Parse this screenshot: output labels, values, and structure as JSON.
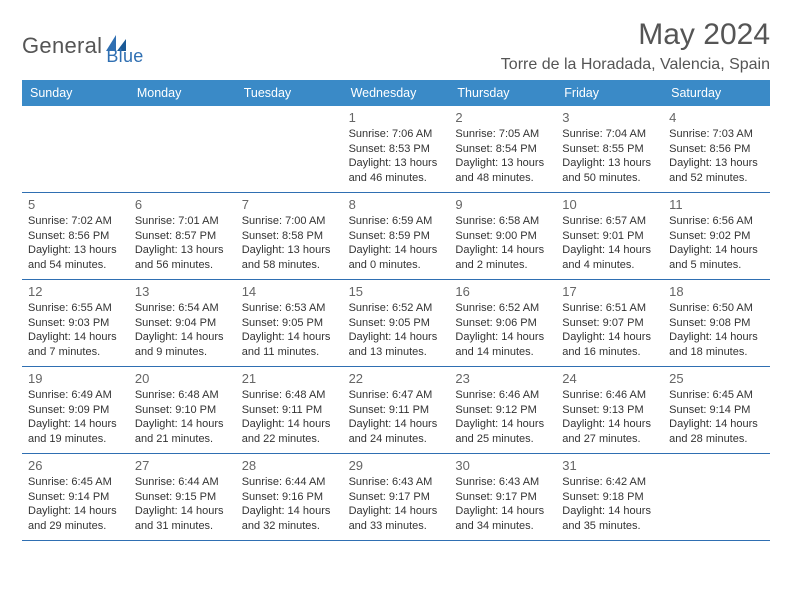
{
  "logo": {
    "text_left": "General",
    "text_right": "Blue"
  },
  "title": "May 2024",
  "location": "Torre de la Horadada, Valencia, Spain",
  "colors": {
    "header_bg": "#3a8ac7",
    "header_text": "#ffffff",
    "rule": "#2f6fb2",
    "text": "#333333",
    "muted": "#666666",
    "title": "#555555"
  },
  "dow": [
    "Sunday",
    "Monday",
    "Tuesday",
    "Wednesday",
    "Thursday",
    "Friday",
    "Saturday"
  ],
  "weeks": [
    [
      null,
      null,
      null,
      {
        "n": "1",
        "sr": "7:06 AM",
        "ss": "8:53 PM",
        "dh": 13,
        "dm": 46
      },
      {
        "n": "2",
        "sr": "7:05 AM",
        "ss": "8:54 PM",
        "dh": 13,
        "dm": 48
      },
      {
        "n": "3",
        "sr": "7:04 AM",
        "ss": "8:55 PM",
        "dh": 13,
        "dm": 50
      },
      {
        "n": "4",
        "sr": "7:03 AM",
        "ss": "8:56 PM",
        "dh": 13,
        "dm": 52
      }
    ],
    [
      {
        "n": "5",
        "sr": "7:02 AM",
        "ss": "8:56 PM",
        "dh": 13,
        "dm": 54
      },
      {
        "n": "6",
        "sr": "7:01 AM",
        "ss": "8:57 PM",
        "dh": 13,
        "dm": 56
      },
      {
        "n": "7",
        "sr": "7:00 AM",
        "ss": "8:58 PM",
        "dh": 13,
        "dm": 58
      },
      {
        "n": "8",
        "sr": "6:59 AM",
        "ss": "8:59 PM",
        "dh": 14,
        "dm": 0
      },
      {
        "n": "9",
        "sr": "6:58 AM",
        "ss": "9:00 PM",
        "dh": 14,
        "dm": 2
      },
      {
        "n": "10",
        "sr": "6:57 AM",
        "ss": "9:01 PM",
        "dh": 14,
        "dm": 4
      },
      {
        "n": "11",
        "sr": "6:56 AM",
        "ss": "9:02 PM",
        "dh": 14,
        "dm": 5
      }
    ],
    [
      {
        "n": "12",
        "sr": "6:55 AM",
        "ss": "9:03 PM",
        "dh": 14,
        "dm": 7
      },
      {
        "n": "13",
        "sr": "6:54 AM",
        "ss": "9:04 PM",
        "dh": 14,
        "dm": 9
      },
      {
        "n": "14",
        "sr": "6:53 AM",
        "ss": "9:05 PM",
        "dh": 14,
        "dm": 11
      },
      {
        "n": "15",
        "sr": "6:52 AM",
        "ss": "9:05 PM",
        "dh": 14,
        "dm": 13
      },
      {
        "n": "16",
        "sr": "6:52 AM",
        "ss": "9:06 PM",
        "dh": 14,
        "dm": 14
      },
      {
        "n": "17",
        "sr": "6:51 AM",
        "ss": "9:07 PM",
        "dh": 14,
        "dm": 16
      },
      {
        "n": "18",
        "sr": "6:50 AM",
        "ss": "9:08 PM",
        "dh": 14,
        "dm": 18
      }
    ],
    [
      {
        "n": "19",
        "sr": "6:49 AM",
        "ss": "9:09 PM",
        "dh": 14,
        "dm": 19
      },
      {
        "n": "20",
        "sr": "6:48 AM",
        "ss": "9:10 PM",
        "dh": 14,
        "dm": 21
      },
      {
        "n": "21",
        "sr": "6:48 AM",
        "ss": "9:11 PM",
        "dh": 14,
        "dm": 22
      },
      {
        "n": "22",
        "sr": "6:47 AM",
        "ss": "9:11 PM",
        "dh": 14,
        "dm": 24
      },
      {
        "n": "23",
        "sr": "6:46 AM",
        "ss": "9:12 PM",
        "dh": 14,
        "dm": 25
      },
      {
        "n": "24",
        "sr": "6:46 AM",
        "ss": "9:13 PM",
        "dh": 14,
        "dm": 27
      },
      {
        "n": "25",
        "sr": "6:45 AM",
        "ss": "9:14 PM",
        "dh": 14,
        "dm": 28
      }
    ],
    [
      {
        "n": "26",
        "sr": "6:45 AM",
        "ss": "9:14 PM",
        "dh": 14,
        "dm": 29
      },
      {
        "n": "27",
        "sr": "6:44 AM",
        "ss": "9:15 PM",
        "dh": 14,
        "dm": 31
      },
      {
        "n": "28",
        "sr": "6:44 AM",
        "ss": "9:16 PM",
        "dh": 14,
        "dm": 32
      },
      {
        "n": "29",
        "sr": "6:43 AM",
        "ss": "9:17 PM",
        "dh": 14,
        "dm": 33
      },
      {
        "n": "30",
        "sr": "6:43 AM",
        "ss": "9:17 PM",
        "dh": 14,
        "dm": 34
      },
      {
        "n": "31",
        "sr": "6:42 AM",
        "ss": "9:18 PM",
        "dh": 14,
        "dm": 35
      },
      null
    ]
  ],
  "labels": {
    "sunrise": "Sunrise:",
    "sunset": "Sunset:",
    "daylight_prefix": "Daylight:",
    "hours_word": "hours",
    "and_word": "and",
    "minutes_word": "minutes."
  }
}
